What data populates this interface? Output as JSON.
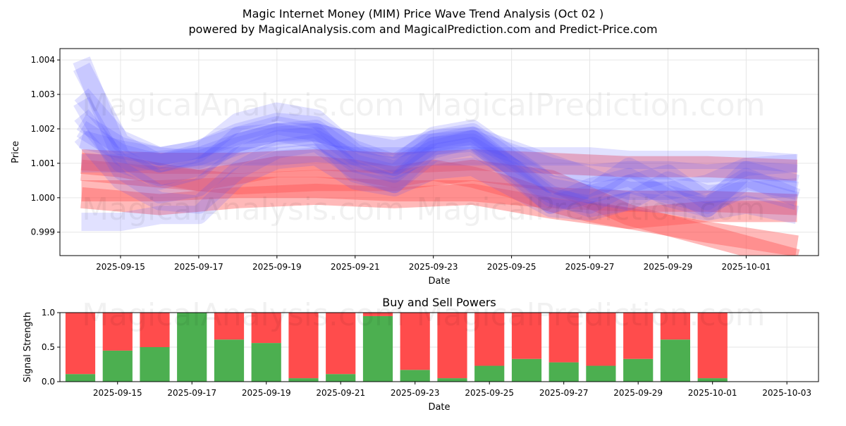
{
  "title": "Magic Internet Money (MIM) Price Wave Trend Analysis (Oct 02 )",
  "subtitle": "powered by MagicalAnalysis.com and MagicalPrediction.com and Predict-Price.com",
  "watermarks": [
    "MagicalAnalysis.com",
    "MagicalPrediction.com"
  ],
  "chart_data": [
    {
      "type": "area",
      "name": "price-wave-chart",
      "xlabel": "Date",
      "ylabel": "Price",
      "xlim": [
        -0.55,
        18.85
      ],
      "ylim": [
        0.99832,
        1.00433
      ],
      "yticks": [
        0.999,
        1.0,
        1.001,
        1.002,
        1.003,
        1.004
      ],
      "ytick_labels": [
        "0.999",
        "1.000",
        "1.001",
        "1.002",
        "1.003",
        "1.004"
      ],
      "xticks": [
        1,
        3,
        5,
        7,
        9,
        11,
        13,
        15,
        17
      ],
      "xtick_labels": [
        "2025-09-15",
        "2025-09-17",
        "2025-09-19",
        "2025-09-21",
        "2025-09-23",
        "2025-09-25",
        "2025-09-27",
        "2025-09-29",
        "2025-10-01"
      ],
      "grid": true,
      "colors": {
        "blue": "#4d4dff",
        "red": "#ff5050"
      },
      "series": [
        {
          "name": "blue-wave-1",
          "color": "blue",
          "x": [
            0,
            1,
            2,
            3,
            4,
            5,
            6,
            7,
            8,
            9,
            10,
            11,
            12,
            13
          ],
          "y": [
            1.0038,
            1.0016,
            1.001,
            1.0013,
            1.0022,
            1.0025,
            1.0023,
            1.0013,
            1.0009,
            1.0018,
            1.002,
            1.0012,
            1.0004,
            1.0002
          ]
        },
        {
          "name": "blue-wave-2",
          "color": "blue",
          "x": [
            0,
            1,
            2,
            3,
            4,
            5,
            6,
            7,
            8,
            9,
            10,
            11,
            12,
            13,
            14
          ],
          "y": [
            1.003,
            1.0017,
            1.0012,
            1.0014,
            1.0019,
            1.0022,
            1.0021,
            1.0014,
            1.001,
            1.0017,
            1.0019,
            1.0011,
            1.0004,
            1.0001,
            0.9999
          ]
        },
        {
          "name": "blue-wave-3",
          "color": "blue",
          "x": [
            0,
            1,
            2,
            3,
            4,
            5,
            6,
            7,
            8,
            9,
            10,
            11,
            12,
            13,
            14,
            15,
            16,
            17,
            18.3
          ],
          "y": [
            1.004,
            1.0012,
            1.0005,
            1.0008,
            1.0018,
            1.0021,
            1.0019,
            1.0007,
            1.0004,
            1.0015,
            1.0017,
            1.0007,
            0.9998,
            1.0001,
            1.0009,
            1.0003,
            0.9997,
            1.0008,
            1.0004
          ]
        },
        {
          "name": "blue-wave-4",
          "color": "blue",
          "x": [
            0,
            1,
            2,
            3,
            4,
            5,
            6,
            7,
            8,
            9,
            10,
            11,
            12,
            13,
            14,
            15,
            16,
            17,
            18.3
          ],
          "y": [
            1.002,
            1.0013,
            1.001,
            1.0012,
            1.0016,
            1.0019,
            1.0019,
            1.0016,
            1.0014,
            1.0017,
            1.0018,
            1.0014,
            1.001,
            1.0006,
            1.0002,
            1.0002,
            1.0004,
            1.0009,
            1.001
          ]
        },
        {
          "name": "blue-wave-5",
          "color": "blue",
          "x": [
            0,
            1,
            2,
            3,
            4,
            5,
            6,
            7,
            8,
            9,
            10,
            11,
            12,
            13,
            14,
            15,
            16,
            17,
            18.3
          ],
          "y": [
            1.0018,
            1.0005,
            0.9999,
            0.9998,
            1.0008,
            1.0014,
            1.0016,
            1.0008,
            1.0004,
            1.0013,
            1.0015,
            1.0008,
            0.9998,
            1.0003,
            1.0006,
            1.0,
            0.9997,
            1.0005,
            1.0002
          ]
        },
        {
          "name": "blue-wave-6",
          "color": "blue",
          "x": [
            0,
            1,
            2,
            3,
            4,
            5,
            6,
            7,
            8,
            9,
            10,
            11,
            12,
            13,
            14,
            15,
            16,
            17,
            18.3
          ],
          "y": [
            1.0028,
            1.0008,
            1.0001,
            1.0003,
            1.0012,
            1.0017,
            1.0018,
            1.001,
            1.0007,
            1.0016,
            1.0018,
            1.0009,
            1.0,
            0.9998,
            1.0004,
            1.0007,
            0.9999,
            1.0006,
            1.0
          ]
        },
        {
          "name": "blue-wave-7",
          "color": "blue",
          "x": [
            0,
            1,
            2,
            3,
            4,
            5,
            6,
            7,
            8,
            9,
            10,
            11,
            12,
            13,
            14,
            15,
            16,
            17,
            18.3
          ],
          "y": [
            1.0024,
            1.001,
            1.0006,
            1.0009,
            1.0016,
            1.0019,
            1.002,
            1.0012,
            1.0008,
            1.0014,
            1.0017,
            1.0009,
            1.0001,
            0.9997,
            0.9999,
            1.0005,
            1.0001,
            1.0002,
            1.0003
          ]
        },
        {
          "name": "blue-wave-8",
          "color": "blue",
          "x": [
            0,
            1,
            2,
            3,
            4,
            5,
            6,
            7,
            8,
            9,
            10,
            11,
            12,
            13,
            14,
            15,
            16,
            17,
            18.3
          ],
          "y": [
            1.0022,
            1.0015,
            1.0012,
            1.0014,
            1.0018,
            1.0019,
            1.0017,
            1.0011,
            1.0009,
            1.0015,
            1.0016,
            1.0009,
            1.0003,
            1.0001,
            1.0004,
            1.0001,
            0.9998,
            1.0003,
            0.9999
          ]
        },
        {
          "name": "blue-wave-9",
          "color": "blue",
          "x": [
            0,
            1,
            2,
            3,
            4,
            5,
            6,
            7,
            8,
            9,
            10,
            11,
            12,
            13,
            14,
            15,
            16,
            17,
            18.3
          ],
          "y": [
            0.9993,
            0.9993,
            0.9995,
            0.9995,
            1.0006,
            1.0011,
            1.0012,
            1.0005,
            1.0003,
            1.0008,
            1.0009,
            1.0003,
            0.9997,
            0.9996,
            0.9999,
            0.9998,
            0.9996,
            0.9998,
            0.9995
          ]
        },
        {
          "name": "blue-wave-10",
          "color": "blue",
          "x": [
            0,
            1,
            2,
            3,
            4,
            5,
            6,
            7,
            8,
            9,
            10,
            11,
            12,
            13,
            14,
            15,
            16,
            17,
            18.3
          ],
          "y": [
            1.001,
            1.001,
            1.0011,
            1.0012,
            1.0012,
            1.0012,
            1.0013,
            1.0012,
            1.0012,
            1.0012,
            1.0012,
            1.0012,
            1.0012,
            1.0012,
            1.0011,
            1.0011,
            1.0011,
            1.0011,
            1.001
          ]
        },
        {
          "name": "blue-wave-11",
          "color": "blue",
          "x": [
            0,
            1,
            2,
            3,
            4,
            5,
            6,
            7,
            8,
            9,
            10,
            11,
            12,
            13,
            14,
            15,
            16,
            17,
            18.3
          ],
          "y": [
            1.0017,
            1.0014,
            1.0012,
            1.0011,
            1.0015,
            1.0018,
            1.0019,
            1.0016,
            1.0015,
            1.0016,
            1.0017,
            1.0013,
            1.0009,
            1.0007,
            1.0008,
            1.0008,
            1.0007,
            1.0008,
            1.0007
          ]
        },
        {
          "name": "red-wave-1",
          "color": "red",
          "x": [
            0,
            2,
            4,
            6,
            8,
            10,
            12,
            14,
            16,
            18.3
          ],
          "y": [
            1.0008,
            1.0006,
            1.0004,
            1.0005,
            1.0005,
            1.0008,
            1.0005,
            0.9995,
            0.9989,
            0.9982
          ]
        },
        {
          "name": "red-wave-2",
          "color": "red",
          "x": [
            0,
            2,
            4,
            6,
            8,
            10,
            12,
            14,
            16,
            18.3
          ],
          "y": [
            1.0,
            0.9998,
            1.0,
            1.0001,
            1.0,
            1.0001,
            0.9997,
            0.9994,
            0.999,
            0.9986
          ]
        },
        {
          "name": "red-wave-3",
          "color": "red",
          "x": [
            0,
            1,
            2,
            3,
            4,
            5,
            6,
            7,
            8,
            9,
            10,
            11,
            12,
            13,
            14,
            15,
            16,
            17,
            18.3
          ],
          "y": [
            1.001,
            1.0009,
            1.0007,
            1.0005,
            1.0007,
            1.0009,
            1.0009,
            1.0008,
            1.0006,
            1.0008,
            1.0006,
            1.0003,
            0.9999,
            0.9996,
            0.9994,
            0.9995,
            0.9996,
            0.9996,
            0.9996
          ]
        },
        {
          "name": "red-wave-4",
          "color": "red",
          "x": [
            0,
            2,
            4,
            6,
            8,
            10,
            12,
            14,
            16,
            18.3
          ],
          "y": [
            1.0011,
            1.001,
            1.001,
            1.0011,
            1.001,
            1.0011,
            1.001,
            1.0009,
            1.0009,
            1.0008
          ]
        },
        {
          "name": "red-wave-5",
          "color": "red",
          "x": [
            0,
            2,
            4,
            6,
            8,
            10,
            12,
            14,
            16,
            18.3
          ],
          "y": [
            1.0002,
            1.0002,
            1.0003,
            1.0003,
            1.0002,
            1.0002,
            1.0,
            0.9999,
            0.9999,
            0.9998
          ]
        }
      ]
    },
    {
      "type": "bar",
      "name": "buy-sell-power-chart",
      "title": "Buy and Sell Powers",
      "xlabel": "Date",
      "ylabel": "Signal Strength",
      "xlim": [
        -0.55,
        19.85
      ],
      "ylim": [
        0,
        1
      ],
      "yticks": [
        0.0,
        0.5,
        1.0
      ],
      "ytick_labels": [
        "0.0",
        "0.5",
        "1.0"
      ],
      "xticks": [
        1,
        3,
        5,
        7,
        9,
        11,
        13,
        15,
        17,
        19
      ],
      "xtick_labels": [
        "2025-09-15",
        "2025-09-17",
        "2025-09-19",
        "2025-09-21",
        "2025-09-23",
        "2025-09-25",
        "2025-09-27",
        "2025-09-29",
        "2025-10-01",
        "2025-10-03"
      ],
      "grid": true,
      "colors": {
        "buy": "#4caf50",
        "sell": "#ff4c4c"
      },
      "categories": [
        "2025-09-14",
        "2025-09-15",
        "2025-09-16",
        "2025-09-17",
        "2025-09-18",
        "2025-09-19",
        "2025-09-20",
        "2025-09-21",
        "2025-09-22",
        "2025-09-23",
        "2025-09-24",
        "2025-09-25",
        "2025-09-26",
        "2025-09-27",
        "2025-09-28",
        "2025-09-29",
        "2025-09-30",
        "2025-10-01"
      ],
      "series": [
        {
          "name": "Buy",
          "values": [
            0.11,
            0.45,
            0.5,
            1.0,
            0.61,
            0.56,
            0.05,
            0.11,
            0.95,
            0.17,
            0.05,
            0.23,
            0.33,
            0.28,
            0.23,
            0.33,
            0.61,
            0.05
          ]
        },
        {
          "name": "Sell",
          "values": [
            0.89,
            0.55,
            0.5,
            0.0,
            0.39,
            0.44,
            0.95,
            0.89,
            0.05,
            0.83,
            0.95,
            0.77,
            0.67,
            0.72,
            0.77,
            0.67,
            0.39,
            0.95
          ]
        }
      ]
    }
  ]
}
